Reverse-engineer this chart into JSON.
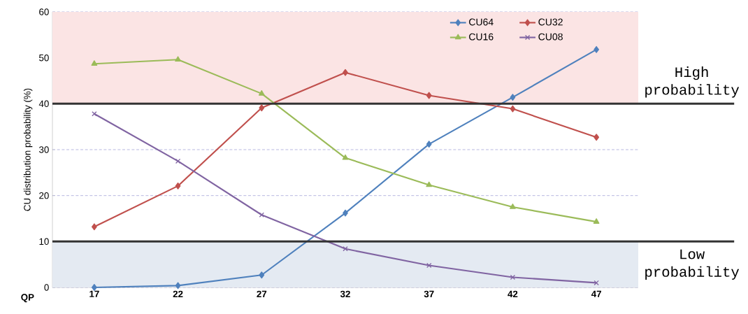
{
  "chart_data": {
    "type": "line",
    "xlabel": "QP",
    "ylabel": "CU distribution probability (%)",
    "categories": [
      "17",
      "22",
      "27",
      "32",
      "37",
      "42",
      "47"
    ],
    "series": [
      {
        "name": "CU64",
        "color": "#4f81bd",
        "marker": "diamond",
        "values": [
          0,
          0.4,
          2.7,
          16.2,
          31.2,
          41.4,
          51.8
        ]
      },
      {
        "name": "CU32",
        "color": "#c0504d",
        "marker": "diamond",
        "values": [
          13.2,
          22.1,
          39.1,
          46.8,
          41.8,
          38.9,
          32.7
        ]
      },
      {
        "name": "CU16",
        "color": "#9bbb59",
        "marker": "triangle",
        "values": [
          48.7,
          49.6,
          42.2,
          28.2,
          22.3,
          17.5,
          14.3
        ]
      },
      {
        "name": "CU08",
        "color": "#8064a2",
        "marker": "cross",
        "values": [
          37.8,
          27.5,
          15.8,
          8.4,
          4.8,
          2.2,
          1.0
        ]
      }
    ],
    "ylim": [
      0,
      60
    ],
    "yticks": [
      0,
      10,
      20,
      30,
      40,
      50,
      60
    ],
    "grid": "y",
    "legend": "top right",
    "ref_lines": [
      {
        "axis": "y",
        "value": 40,
        "label": "High probability",
        "color": "#333333"
      },
      {
        "axis": "y",
        "value": 10,
        "label": "Low probability",
        "color": "#333333"
      }
    ],
    "bands": [
      {
        "axis": "y",
        "from": 40,
        "to": 60,
        "color": "#fbe4e4"
      },
      {
        "axis": "y",
        "from": 0,
        "to": 10,
        "color": "#e4eaf2"
      }
    ]
  }
}
